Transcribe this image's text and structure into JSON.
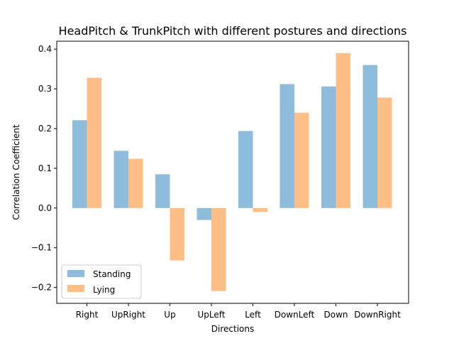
{
  "chart_data": {
    "type": "bar",
    "title": "HeadPitch & TrunkPitch with different postures and directions",
    "xlabel": "Directions",
    "ylabel": "Correlation Coefficient",
    "categories": [
      "Right",
      "UpRight",
      "Up",
      "UpLeft",
      "Left",
      "DownLeft",
      "Down",
      "DownRight"
    ],
    "series": [
      {
        "name": "Standing",
        "color": "#8ebcdc",
        "values": [
          0.221,
          0.144,
          0.085,
          -0.03,
          0.194,
          0.312,
          0.306,
          0.36
        ]
      },
      {
        "name": "Lying",
        "color": "#ffbe86",
        "values": [
          0.328,
          0.124,
          -0.132,
          -0.209,
          -0.01,
          0.24,
          0.39,
          0.278
        ]
      }
    ],
    "ylim": [
      -0.24,
      0.42
    ],
    "yticks": [
      -0.2,
      -0.1,
      0.0,
      0.1,
      0.2,
      0.3,
      0.4
    ],
    "ytick_labels": [
      "−0.2",
      "−0.1",
      "0.0",
      "0.1",
      "0.2",
      "0.3",
      "0.4"
    ],
    "legend_position": "lower left",
    "grid": false
  }
}
